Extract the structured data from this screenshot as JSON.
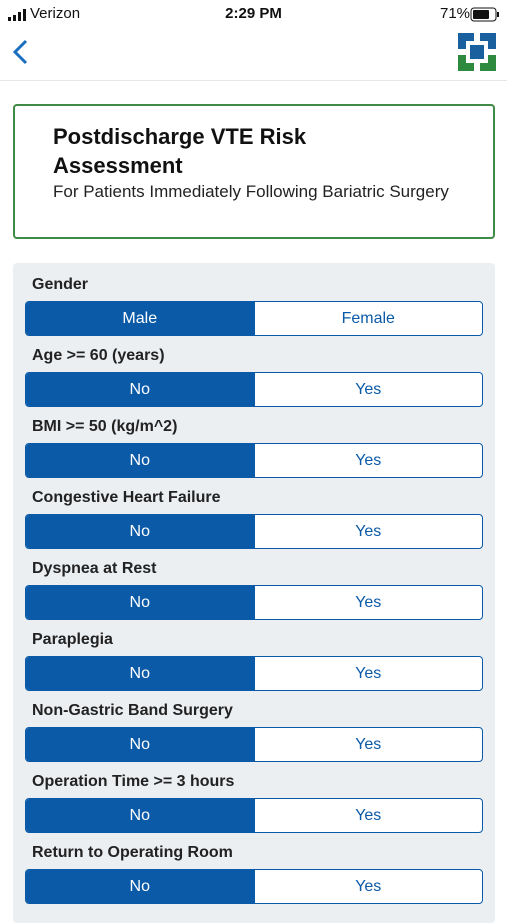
{
  "status_bar": {
    "carrier": "Verizon",
    "time": "2:29 PM",
    "battery": "71%"
  },
  "header": {
    "title": "Postdischarge VTE Risk Assessment",
    "subtitle": "For Patients Immediately Following Bariatric Surgery"
  },
  "questions": [
    {
      "label": "Gender",
      "options": [
        "Male",
        "Female"
      ],
      "selected": 0
    },
    {
      "label": "Age >= 60 (years)",
      "options": [
        "No",
        "Yes"
      ],
      "selected": 0
    },
    {
      "label": "BMI >= 50 (kg/m^2)",
      "options": [
        "No",
        "Yes"
      ],
      "selected": 0
    },
    {
      "label": "Congestive Heart Failure",
      "options": [
        "No",
        "Yes"
      ],
      "selected": 0
    },
    {
      "label": "Dyspnea at Rest",
      "options": [
        "No",
        "Yes"
      ],
      "selected": 0
    },
    {
      "label": "Paraplegia",
      "options": [
        "No",
        "Yes"
      ],
      "selected": 0
    },
    {
      "label": "Non-Gastric Band Surgery",
      "options": [
        "No",
        "Yes"
      ],
      "selected": 0
    },
    {
      "label": "Operation Time >= 3 hours",
      "options": [
        "No",
        "Yes"
      ],
      "selected": 0
    },
    {
      "label": "Return to Operating Room",
      "options": [
        "No",
        "Yes"
      ],
      "selected": 0
    }
  ]
}
